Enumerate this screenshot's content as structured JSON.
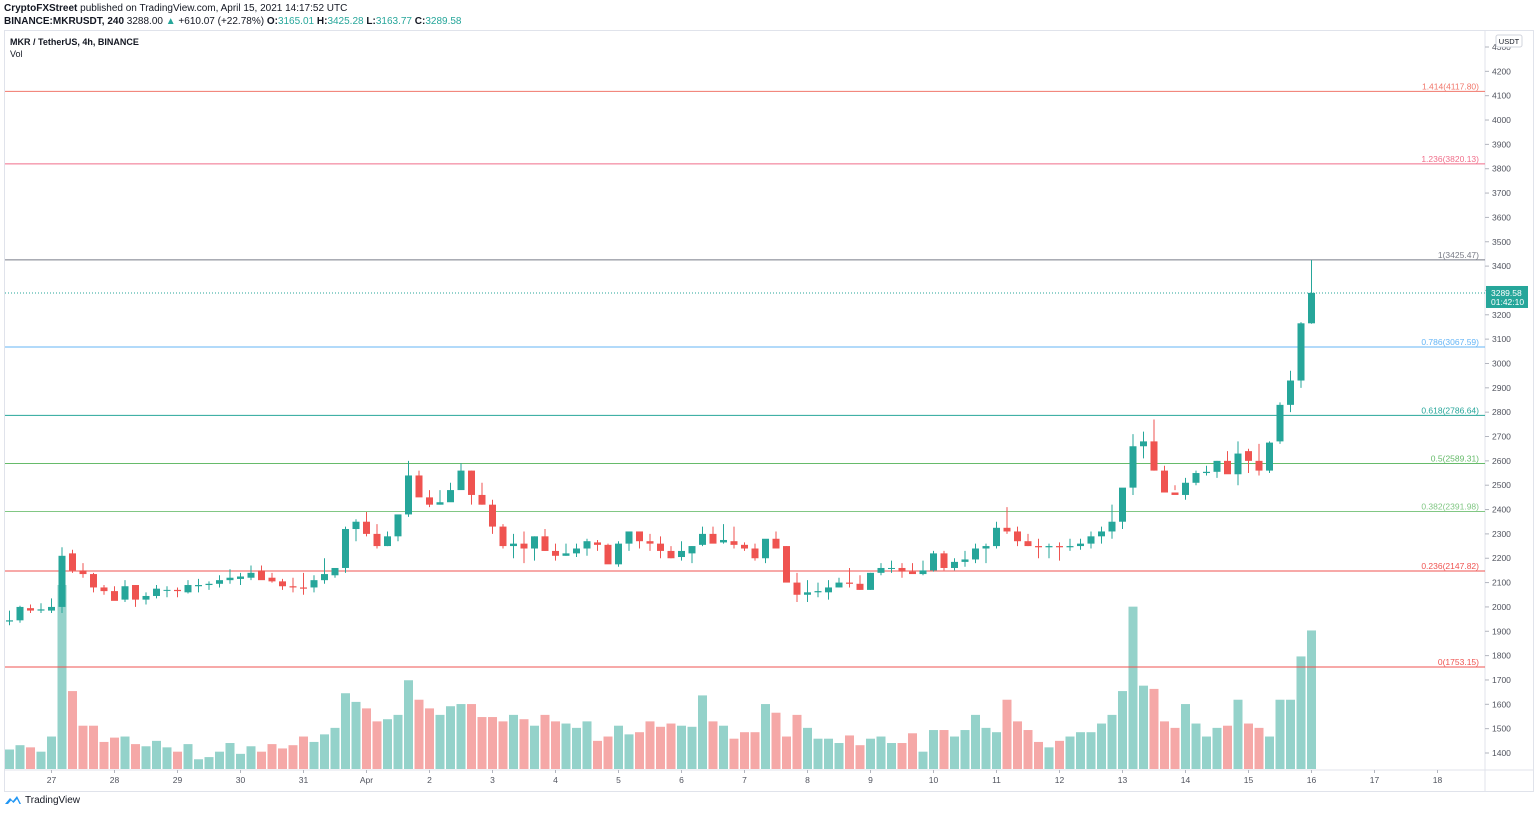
{
  "header": {
    "publisher": "CryptoFXStreet",
    "published_text": "published on TradingView.com, April 15, 2021 14:17:52 UTC",
    "ticker": "BINANCE:MKRUSDT, 240",
    "last": "3288.00",
    "change_arrow": "▲",
    "change": "+610.07 (+22.78%)",
    "o_label": "O:",
    "o": "3165.01",
    "h_label": "H:",
    "h": "3425.28",
    "l_label": "L:",
    "l": "3163.77",
    "c_label": "C:",
    "c": "3289.58"
  },
  "legend": {
    "symbol": "MKR / TetherUS, 4h, BINANCE",
    "indicator": "Vol"
  },
  "price_axis": {
    "currency": "USDT",
    "current_price": "3289.58",
    "countdown": "01:42:10"
  },
  "footer": {
    "brand": "TradingView"
  },
  "colors": {
    "up": "#26a69a",
    "down": "#ef5350",
    "vol_up": "#94d2ca",
    "vol_down": "#f5a8a7",
    "grid": "#e0e3eb"
  },
  "chart_data": {
    "type": "candlestick",
    "title": "MKR / TetherUS, 4h, BINANCE",
    "xlabel": "",
    "ylabel": "USDT",
    "ylim": [
      1330,
      4330
    ],
    "y_ticks": [
      1400,
      1500,
      1600,
      1700,
      1800,
      1900,
      2000,
      2100,
      2200,
      2300,
      2400,
      2500,
      2600,
      2700,
      2800,
      2900,
      3000,
      3100,
      3200,
      3300,
      3400,
      3500,
      3600,
      3700,
      3800,
      3900,
      4000,
      4100,
      4200,
      4300
    ],
    "x_ticks": [
      {
        "label": "27",
        "index": 2
      },
      {
        "label": "28",
        "index": 8
      },
      {
        "label": "29",
        "index": 14
      },
      {
        "label": "30",
        "index": 20
      },
      {
        "label": "31",
        "index": 26
      },
      {
        "label": "Apr",
        "index": 32
      },
      {
        "label": "2",
        "index": 38
      },
      {
        "label": "3",
        "index": 44
      },
      {
        "label": "4",
        "index": 50
      },
      {
        "label": "5",
        "index": 56
      },
      {
        "label": "6",
        "index": 62
      },
      {
        "label": "7",
        "index": 68
      },
      {
        "label": "8",
        "index": 74
      },
      {
        "label": "9",
        "index": 80
      },
      {
        "label": "10",
        "index": 86
      },
      {
        "label": "11",
        "index": 92
      },
      {
        "label": "12",
        "index": 98
      },
      {
        "label": "13",
        "index": 104
      },
      {
        "label": "14",
        "index": 110
      },
      {
        "label": "15",
        "index": 116
      },
      {
        "label": "16",
        "index": 122
      },
      {
        "label": "17",
        "index": 128
      },
      {
        "label": "18",
        "index": 134
      }
    ],
    "fib_levels": [
      {
        "label": "1.414(4117.80)",
        "price": 4117.8,
        "color": "#f0776b"
      },
      {
        "label": "1.236(3820.13)",
        "price": 3820.13,
        "color": "#f06e8a"
      },
      {
        "label": "1(3425.47)",
        "price": 3425.47,
        "color": "#787b86"
      },
      {
        "label": "0.786(3067.59)",
        "price": 3067.59,
        "color": "#64b5f6"
      },
      {
        "label": "0.618(2786.64)",
        "price": 2786.64,
        "color": "#26a69a"
      },
      {
        "label": "0.5(2589.31)",
        "price": 2589.31,
        "color": "#66bb6a"
      },
      {
        "label": "0.382(2391.98)",
        "price": 2391.98,
        "color": "#81c784"
      },
      {
        "label": "0.236(2147.82)",
        "price": 2147.82,
        "color": "#ef5350"
      },
      {
        "label": "0(1753.15)",
        "price": 1753.15,
        "color": "#ef5350"
      }
    ],
    "current_price_line": 3289.58,
    "candles": [
      [
        1940,
        1985,
        1925,
        1945,
        18
      ],
      [
        1945,
        2005,
        1935,
        2000,
        22
      ],
      [
        1995,
        2010,
        1975,
        1985,
        20
      ],
      [
        1985,
        2015,
        1975,
        1990,
        16
      ],
      [
        1985,
        2035,
        1975,
        2000,
        30
      ],
      [
        2000,
        2245,
        1975,
        2210,
        170
      ],
      [
        2220,
        2235,
        2140,
        2150,
        72
      ],
      [
        2150,
        2180,
        2120,
        2135,
        40
      ],
      [
        2135,
        2140,
        2060,
        2080,
        40
      ],
      [
        2080,
        2090,
        2050,
        2065,
        25
      ],
      [
        2065,
        2085,
        2030,
        2025,
        29
      ],
      [
        2030,
        2110,
        2020,
        2085,
        30
      ],
      [
        2090,
        2090,
        2000,
        2030,
        23
      ],
      [
        2030,
        2060,
        2010,
        2045,
        21
      ],
      [
        2045,
        2090,
        2035,
        2075,
        26
      ],
      [
        2070,
        2085,
        2040,
        2070,
        20
      ],
      [
        2070,
        2080,
        2040,
        2065,
        16
      ],
      [
        2060,
        2110,
        2055,
        2090,
        23
      ],
      [
        2085,
        2115,
        2060,
        2090,
        9
      ],
      [
        2090,
        2105,
        2070,
        2095,
        11
      ],
      [
        2095,
        2130,
        2080,
        2110,
        16
      ],
      [
        2110,
        2155,
        2095,
        2120,
        24
      ],
      [
        2115,
        2140,
        2090,
        2125,
        14
      ],
      [
        2120,
        2170,
        2110,
        2140,
        21
      ],
      [
        2150,
        2170,
        2120,
        2110,
        16
      ],
      [
        2120,
        2140,
        2100,
        2105,
        23
      ],
      [
        2105,
        2115,
        2070,
        2085,
        19
      ],
      [
        2085,
        2120,
        2060,
        2080,
        22
      ],
      [
        2080,
        2140,
        2050,
        2075,
        30
      ],
      [
        2080,
        2130,
        2060,
        2110,
        25
      ],
      [
        2110,
        2200,
        2095,
        2135,
        32
      ],
      [
        2130,
        2160,
        2120,
        2160,
        38
      ],
      [
        2160,
        2330,
        2140,
        2320,
        70
      ],
      [
        2320,
        2360,
        2270,
        2350,
        62
      ],
      [
        2350,
        2390,
        2290,
        2300,
        56
      ],
      [
        2300,
        2340,
        2240,
        2250,
        44
      ],
      [
        2250,
        2310,
        2250,
        2290,
        46
      ],
      [
        2290,
        2370,
        2270,
        2380,
        50
      ],
      [
        2380,
        2600,
        2370,
        2540,
        82
      ],
      [
        2540,
        2560,
        2470,
        2450,
        64
      ],
      [
        2450,
        2480,
        2410,
        2420,
        56
      ],
      [
        2420,
        2480,
        2420,
        2430,
        50
      ],
      [
        2430,
        2510,
        2440,
        2480,
        58
      ],
      [
        2480,
        2590,
        2490,
        2560,
        60
      ],
      [
        2560,
        2560,
        2420,
        2460,
        60
      ],
      [
        2460,
        2510,
        2420,
        2420,
        48
      ],
      [
        2420,
        2440,
        2300,
        2330,
        48
      ],
      [
        2330,
        2340,
        2240,
        2250,
        44
      ],
      [
        2250,
        2300,
        2200,
        2260,
        50
      ],
      [
        2260,
        2310,
        2180,
        2240,
        46
      ],
      [
        2240,
        2290,
        2190,
        2290,
        40
      ],
      [
        2290,
        2320,
        2230,
        2230,
        50
      ],
      [
        2230,
        2260,
        2190,
        2210,
        44
      ],
      [
        2210,
        2260,
        2210,
        2220,
        42
      ],
      [
        2220,
        2260,
        2205,
        2240,
        38
      ],
      [
        2240,
        2280,
        2210,
        2270,
        44
      ],
      [
        2265,
        2275,
        2230,
        2255,
        26
      ],
      [
        2255,
        2260,
        2180,
        2175,
        30
      ],
      [
        2175,
        2270,
        2165,
        2260,
        40
      ],
      [
        2260,
        2300,
        2230,
        2310,
        32
      ],
      [
        2310,
        2310,
        2240,
        2270,
        34
      ],
      [
        2270,
        2300,
        2230,
        2260,
        44
      ],
      [
        2260,
        2290,
        2200,
        2230,
        39
      ],
      [
        2230,
        2250,
        2200,
        2200,
        42
      ],
      [
        2205,
        2270,
        2190,
        2230,
        40
      ],
      [
        2220,
        2250,
        2180,
        2250,
        39
      ],
      [
        2255,
        2330,
        2250,
        2300,
        68
      ],
      [
        2300,
        2330,
        2270,
        2260,
        44
      ],
      [
        2265,
        2340,
        2260,
        2275,
        40
      ],
      [
        2270,
        2330,
        2240,
        2255,
        28
      ],
      [
        2255,
        2265,
        2230,
        2240,
        34
      ],
      [
        2240,
        2260,
        2190,
        2200,
        34
      ],
      [
        2200,
        2240,
        2180,
        2280,
        60
      ],
      [
        2280,
        2310,
        2240,
        2240,
        52
      ],
      [
        2250,
        2250,
        2120,
        2100,
        30
      ],
      [
        2100,
        2140,
        2020,
        2050,
        50
      ],
      [
        2050,
        2110,
        2020,
        2060,
        38
      ],
      [
        2060,
        2100,
        2040,
        2065,
        28
      ],
      [
        2060,
        2110,
        2030,
        2080,
        28
      ],
      [
        2080,
        2120,
        2080,
        2100,
        24
      ],
      [
        2100,
        2160,
        2080,
        2095,
        31
      ],
      [
        2095,
        2130,
        2070,
        2070,
        22
      ],
      [
        2070,
        2140,
        2070,
        2140,
        28
      ],
      [
        2140,
        2180,
        2130,
        2160,
        30
      ],
      [
        2160,
        2190,
        2140,
        2160,
        24
      ],
      [
        2160,
        2180,
        2120,
        2145,
        24
      ],
      [
        2145,
        2180,
        2140,
        2135,
        33
      ],
      [
        2135,
        2190,
        2130,
        2150,
        16
      ],
      [
        2150,
        2230,
        2145,
        2220,
        36
      ],
      [
        2220,
        2230,
        2150,
        2160,
        36
      ],
      [
        2160,
        2200,
        2150,
        2185,
        30
      ],
      [
        2185,
        2230,
        2165,
        2195,
        36
      ],
      [
        2195,
        2260,
        2180,
        2240,
        50
      ],
      [
        2240,
        2260,
        2180,
        2250,
        38
      ],
      [
        2250,
        2350,
        2240,
        2325,
        34
      ],
      [
        2325,
        2410,
        2300,
        2310,
        64
      ],
      [
        2310,
        2330,
        2250,
        2270,
        44
      ],
      [
        2270,
        2300,
        2250,
        2250,
        36
      ],
      [
        2250,
        2280,
        2200,
        2245,
        25
      ],
      [
        2245,
        2260,
        2200,
        2250,
        20
      ],
      [
        2250,
        2265,
        2190,
        2245,
        26
      ],
      [
        2245,
        2280,
        2230,
        2250,
        30
      ],
      [
        2250,
        2280,
        2235,
        2260,
        34
      ],
      [
        2260,
        2310,
        2240,
        2290,
        34
      ],
      [
        2290,
        2330,
        2260,
        2310,
        42
      ],
      [
        2310,
        2420,
        2280,
        2350,
        50
      ],
      [
        2350,
        2460,
        2320,
        2490,
        72
      ],
      [
        2490,
        2710,
        2460,
        2660,
        150
      ],
      [
        2660,
        2720,
        2610,
        2680,
        77
      ],
      [
        2680,
        2770,
        2560,
        2560,
        74
      ],
      [
        2560,
        2580,
        2480,
        2470,
        44
      ],
      [
        2470,
        2500,
        2480,
        2460,
        38
      ],
      [
        2460,
        2530,
        2440,
        2510,
        60
      ],
      [
        2510,
        2560,
        2500,
        2550,
        42
      ],
      [
        2550,
        2580,
        2540,
        2555,
        30
      ],
      [
        2555,
        2600,
        2530,
        2600,
        38
      ],
      [
        2600,
        2640,
        2580,
        2545,
        40
      ],
      [
        2545,
        2680,
        2500,
        2630,
        64
      ],
      [
        2640,
        2650,
        2550,
        2600,
        42
      ],
      [
        2600,
        2670,
        2540,
        2560,
        38
      ],
      [
        2560,
        2680,
        2550,
        2675,
        30
      ],
      [
        2680,
        2840,
        2670,
        2830,
        64
      ],
      [
        2830,
        2970,
        2800,
        2930,
        64
      ],
      [
        2930,
        3170,
        2900,
        3165,
        104
      ],
      [
        3165,
        3425,
        3163,
        3290,
        128
      ]
    ]
  }
}
